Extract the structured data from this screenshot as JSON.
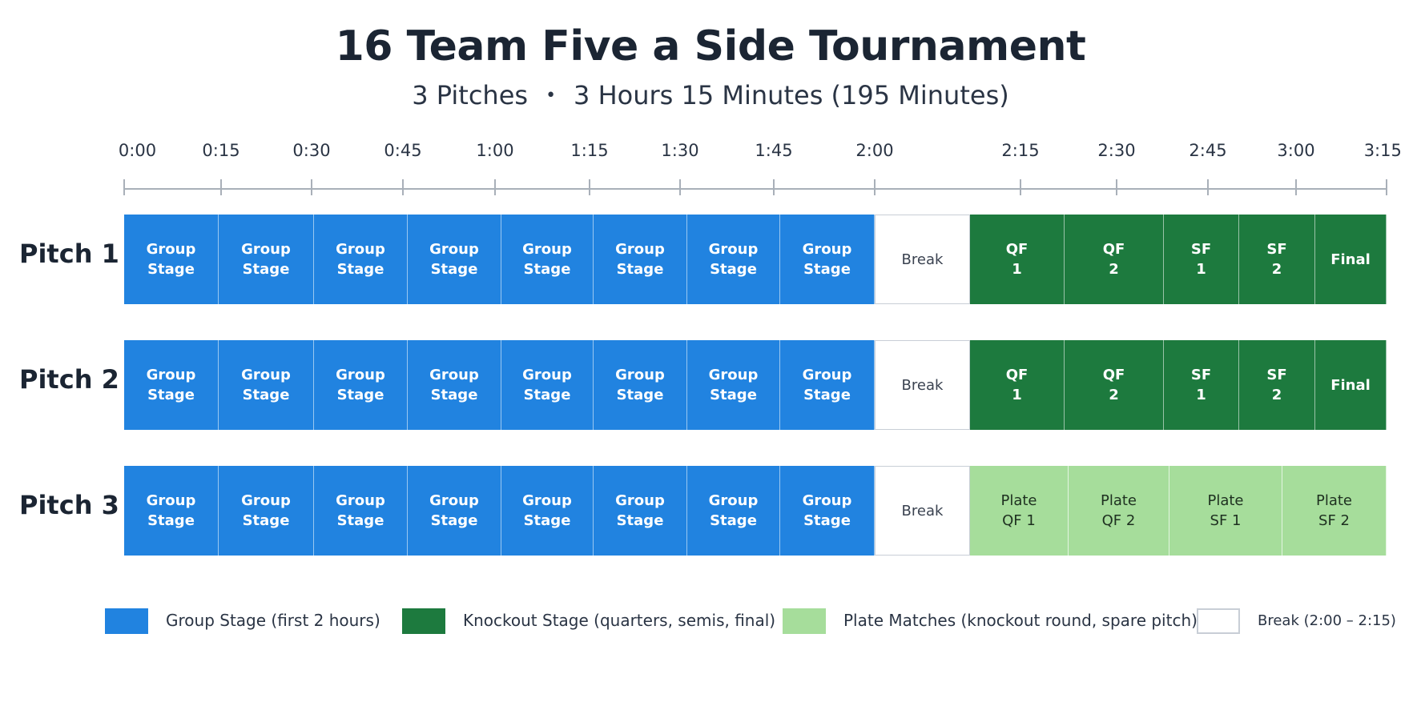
{
  "title": "16 Team Five a Side Tournament",
  "subtitle": {
    "pitches": "3 Pitches",
    "separator": "•",
    "duration": "3 Hours 15 Minutes (195 Minutes)"
  },
  "timeline": {
    "ticks": [
      "0:00",
      "0:15",
      "0:30",
      "0:45",
      "1:00",
      "1:15",
      "1:30",
      "1:45",
      "2:00",
      "2:15",
      "2:30",
      "2:45",
      "3:00",
      "3:15"
    ]
  },
  "pitches": [
    {
      "label": "Pitch 1",
      "blocks": [
        {
          "type": "group",
          "lines": [
            "Group",
            "Stage"
          ]
        },
        {
          "type": "group",
          "lines": [
            "Group",
            "Stage"
          ]
        },
        {
          "type": "group",
          "lines": [
            "Group",
            "Stage"
          ]
        },
        {
          "type": "group",
          "lines": [
            "Group",
            "Stage"
          ]
        },
        {
          "type": "group",
          "lines": [
            "Group",
            "Stage"
          ]
        },
        {
          "type": "group",
          "lines": [
            "Group",
            "Stage"
          ]
        },
        {
          "type": "group",
          "lines": [
            "Group",
            "Stage"
          ]
        },
        {
          "type": "group",
          "lines": [
            "Group",
            "Stage"
          ]
        },
        {
          "type": "break",
          "lines": [
            "Break"
          ]
        },
        {
          "type": "knockout",
          "lines": [
            "QF",
            "1"
          ]
        },
        {
          "type": "knockout",
          "lines": [
            "QF",
            "2"
          ]
        },
        {
          "type": "knockout",
          "lines": [
            "SF",
            "1"
          ]
        },
        {
          "type": "knockout",
          "lines": [
            "SF",
            "2"
          ]
        },
        {
          "type": "knockout",
          "lines": [
            "Final"
          ]
        }
      ]
    },
    {
      "label": "Pitch 2",
      "blocks": [
        {
          "type": "group",
          "lines": [
            "Group",
            "Stage"
          ]
        },
        {
          "type": "group",
          "lines": [
            "Group",
            "Stage"
          ]
        },
        {
          "type": "group",
          "lines": [
            "Group",
            "Stage"
          ]
        },
        {
          "type": "group",
          "lines": [
            "Group",
            "Stage"
          ]
        },
        {
          "type": "group",
          "lines": [
            "Group",
            "Stage"
          ]
        },
        {
          "type": "group",
          "lines": [
            "Group",
            "Stage"
          ]
        },
        {
          "type": "group",
          "lines": [
            "Group",
            "Stage"
          ]
        },
        {
          "type": "group",
          "lines": [
            "Group",
            "Stage"
          ]
        },
        {
          "type": "break",
          "lines": [
            "Break"
          ]
        },
        {
          "type": "knockout",
          "lines": [
            "QF",
            "1"
          ]
        },
        {
          "type": "knockout",
          "lines": [
            "QF",
            "2"
          ]
        },
        {
          "type": "knockout",
          "lines": [
            "SF",
            "1"
          ]
        },
        {
          "type": "knockout",
          "lines": [
            "SF",
            "2"
          ]
        },
        {
          "type": "knockout",
          "lines": [
            "Final"
          ]
        }
      ]
    },
    {
      "label": "Pitch 3",
      "blocks": [
        {
          "type": "group",
          "lines": [
            "Group",
            "Stage"
          ]
        },
        {
          "type": "group",
          "lines": [
            "Group",
            "Stage"
          ]
        },
        {
          "type": "group",
          "lines": [
            "Group",
            "Stage"
          ]
        },
        {
          "type": "group",
          "lines": [
            "Group",
            "Stage"
          ]
        },
        {
          "type": "group",
          "lines": [
            "Group",
            "Stage"
          ]
        },
        {
          "type": "group",
          "lines": [
            "Group",
            "Stage"
          ]
        },
        {
          "type": "group",
          "lines": [
            "Group",
            "Stage"
          ]
        },
        {
          "type": "group",
          "lines": [
            "Group",
            "Stage"
          ]
        },
        {
          "type": "break",
          "lines": [
            "Break"
          ]
        },
        {
          "type": "plate",
          "lines": [
            "Plate",
            "QF 1"
          ]
        },
        {
          "type": "plate",
          "lines": [
            "Plate",
            "QF 2"
          ]
        },
        {
          "type": "plate",
          "lines": [
            "Plate",
            "SF 1"
          ]
        },
        {
          "type": "plate",
          "lines": [
            "Plate",
            "SF 2"
          ]
        }
      ]
    }
  ],
  "legend": [
    {
      "type": "group",
      "label": "Group Stage (first 2 hours)"
    },
    {
      "type": "knockout",
      "label": "Knockout Stage (quarters, semis, final)"
    },
    {
      "type": "plate",
      "label": "Plate Matches (knockout round, spare pitch)"
    },
    {
      "type": "break",
      "label": "Break (2:00 – 2:15)"
    }
  ],
  "colors": {
    "group": "#2183e0",
    "knockout": "#1d7a3e",
    "plate": "#a6dd9b",
    "break": "#ffffff"
  }
}
